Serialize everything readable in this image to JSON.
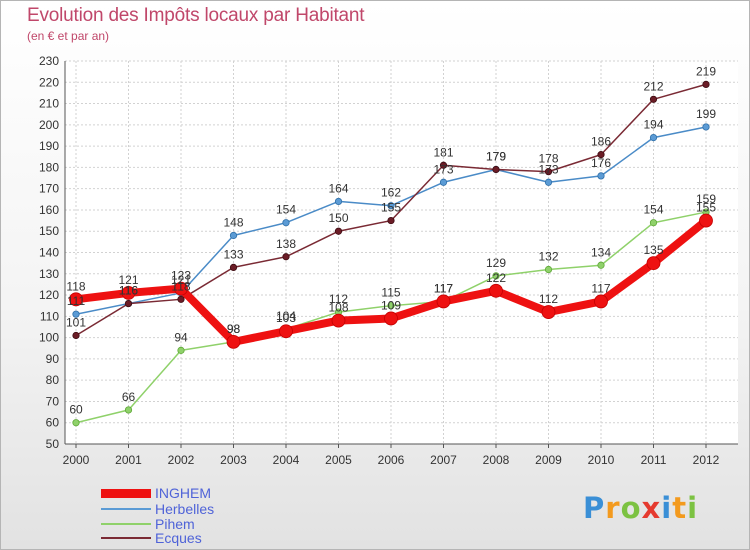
{
  "title": "Evolution des Impôts locaux par Habitant",
  "subtitle": "(en € et par an)",
  "chart_data": {
    "type": "line",
    "title": "Evolution des Impôts locaux par Habitant",
    "subtitle": "(en € et par an)",
    "xlabel": "",
    "ylabel": "",
    "x": [
      "2000",
      "2001",
      "2002",
      "2003",
      "2004",
      "2005",
      "2006",
      "2007",
      "2008",
      "2009",
      "2010",
      "2011",
      "2012"
    ],
    "ylim": [
      50,
      230
    ],
    "yticks": [
      50,
      60,
      70,
      80,
      90,
      100,
      110,
      120,
      130,
      140,
      150,
      160,
      170,
      180,
      190,
      200,
      210,
      220,
      230
    ],
    "grid": true,
    "legend_position": "bottom-left",
    "series": [
      {
        "name": "Herbelles",
        "color": "#5b9bd5",
        "values": [
          111,
          116,
          121,
          148,
          154,
          164,
          162,
          173,
          179,
          173,
          176,
          194,
          199
        ]
      },
      {
        "name": "Pihem",
        "color": "#8fd16a",
        "values": [
          60,
          66,
          94,
          98,
          104,
          112,
          115,
          117,
          129,
          132,
          134,
          154,
          159
        ]
      },
      {
        "name": "Ecques",
        "color": "#7a2a34",
        "values": [
          101,
          116,
          118,
          133,
          138,
          150,
          155,
          181,
          179,
          178,
          186,
          212,
          219
        ]
      },
      {
        "name": "INGHEM",
        "color": "#ee1111",
        "values": [
          118,
          121,
          123,
          98,
          103,
          108,
          109,
          117,
          122,
          112,
          117,
          135,
          155
        ]
      }
    ]
  },
  "legend": {
    "items": [
      {
        "label": "INGHEM",
        "color": "#ee1111"
      },
      {
        "label": "Herbelles",
        "color": "#5b9bd5"
      },
      {
        "label": "Pihem",
        "color": "#8fd16a"
      },
      {
        "label": "Ecques",
        "color": "#7a2a34"
      }
    ]
  },
  "logo": {
    "text": "Proxiti"
  }
}
